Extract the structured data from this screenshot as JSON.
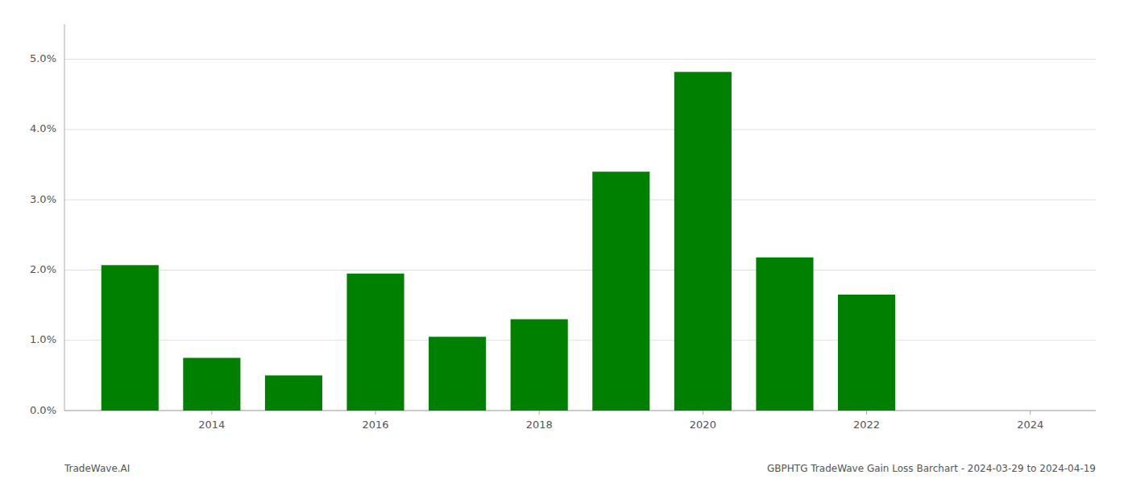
{
  "chart_data": {
    "type": "bar",
    "x": [
      2013,
      2014,
      2015,
      2016,
      2017,
      2018,
      2019,
      2020,
      2021,
      2022,
      2023
    ],
    "values": [
      0.0207,
      0.0075,
      0.005,
      0.0195,
      0.0105,
      0.013,
      0.034,
      0.0482,
      0.0218,
      0.0165,
      0.0
    ],
    "color": "#008000",
    "xlim": [
      2012.2,
      2024.8
    ],
    "xticks": [
      2014,
      2016,
      2018,
      2020,
      2022,
      2024
    ],
    "ylim": [
      0,
      0.055
    ],
    "yticks": [
      {
        "value": 0.0,
        "label": "0.0%"
      },
      {
        "value": 0.01,
        "label": "1.0%"
      },
      {
        "value": 0.02,
        "label": "2.0%"
      },
      {
        "value": 0.03,
        "label": "3.0%"
      },
      {
        "value": 0.04,
        "label": "4.0%"
      },
      {
        "value": 0.05,
        "label": "5.0%"
      }
    ],
    "grid": true,
    "annotations": [
      "TradeWave.AI",
      "GBPHTG TradeWave Gain Loss Barchart - 2024-03-29 to 2024-04-19"
    ]
  }
}
